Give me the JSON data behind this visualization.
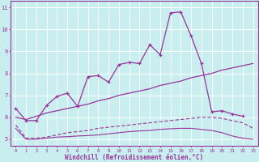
{
  "title": "",
  "xlabel": "Windchill (Refroidissement éolien,°C)",
  "bg_color": "#c8eef0",
  "line_color": "#993399",
  "grid_color": "#ffffff",
  "xlim": [
    -0.5,
    23.5
  ],
  "ylim": [
    4.7,
    11.3
  ],
  "yticks": [
    5,
    6,
    7,
    8,
    9,
    10,
    11
  ],
  "xticks": [
    0,
    1,
    2,
    3,
    4,
    5,
    6,
    7,
    8,
    9,
    10,
    11,
    12,
    13,
    14,
    15,
    16,
    17,
    18,
    19,
    20,
    21,
    22,
    23
  ],
  "line1_y": [
    6.4,
    5.85,
    5.85,
    6.55,
    6.95,
    7.1,
    6.5,
    7.85,
    7.9,
    7.6,
    8.4,
    8.5,
    8.45,
    9.3,
    8.85,
    10.75,
    10.8,
    9.7,
    8.45,
    6.25,
    6.3,
    6.15,
    6.05,
    null
  ],
  "line2_y": [
    6.0,
    5.9,
    6.05,
    6.2,
    6.3,
    6.4,
    6.5,
    6.6,
    6.75,
    6.85,
    7.0,
    7.1,
    7.2,
    7.3,
    7.45,
    7.55,
    7.65,
    7.8,
    7.9,
    8.0,
    8.15,
    8.25,
    8.35,
    8.45
  ],
  "line3_y": [
    5.65,
    5.05,
    5.05,
    5.1,
    5.2,
    5.3,
    5.35,
    5.4,
    5.5,
    5.55,
    5.6,
    5.65,
    5.7,
    5.75,
    5.8,
    5.85,
    5.9,
    5.95,
    6.0,
    6.0,
    5.95,
    5.85,
    5.75,
    5.5
  ],
  "line4_y": [
    5.5,
    5.0,
    5.0,
    5.05,
    5.1,
    5.12,
    5.15,
    5.17,
    5.2,
    5.25,
    5.3,
    5.35,
    5.38,
    5.4,
    5.45,
    5.48,
    5.5,
    5.5,
    5.45,
    5.4,
    5.3,
    5.15,
    5.05,
    5.0
  ]
}
